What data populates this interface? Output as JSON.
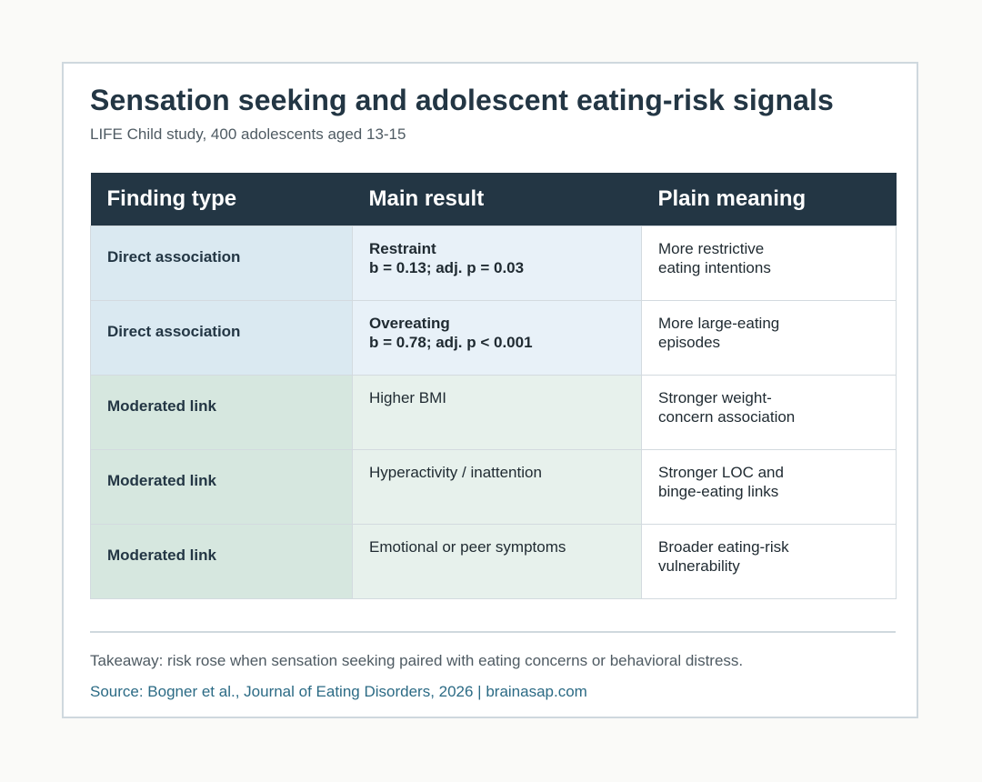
{
  "title": "Sensation seeking and adolescent eating-risk signals",
  "subtitle": "LIFE Child study, 400 adolescents aged 13-15",
  "table": {
    "headers": [
      "Finding type",
      "Main result",
      "Plain meaning"
    ],
    "rows": [
      {
        "type": "Direct association",
        "result_label": "Restraint",
        "result_stat": "b = 0.13; adj. p = 0.03",
        "meaning_line1": "More restrictive",
        "meaning_line2": "eating intentions"
      },
      {
        "type": "Direct association",
        "result_label": "Overeating",
        "result_stat": "b = 0.78; adj. p < 0.001",
        "meaning_line1": "More large-eating",
        "meaning_line2": "episodes"
      },
      {
        "type": "Moderated link",
        "result_label": "Higher BMI",
        "result_stat": "",
        "meaning_line1": "Stronger weight-",
        "meaning_line2": "concern association"
      },
      {
        "type": "Moderated link",
        "result_label": "Hyperactivity / inattention",
        "result_stat": "",
        "meaning_line1": "Stronger LOC and",
        "meaning_line2": "binge-eating links"
      },
      {
        "type": "Moderated link",
        "result_label": "Emotional or peer symptoms",
        "result_stat": "",
        "meaning_line1": "Broader eating-risk",
        "meaning_line2": "vulnerability"
      }
    ]
  },
  "takeaway": "Takeaway: risk rose when sensation seeking paired with eating concerns or behavioral distress.",
  "source": "Source: Bogner et al., Journal of Eating Disorders, 2026 | brainasap.com",
  "colors": {
    "header_bg": "#233644",
    "direct_type_bg": "#dae9f1",
    "direct_result_bg": "#e8f1f8",
    "moderated_type_bg": "#d6e7df",
    "moderated_result_bg": "#e7f1ec",
    "source_link": "#2c6b85"
  }
}
